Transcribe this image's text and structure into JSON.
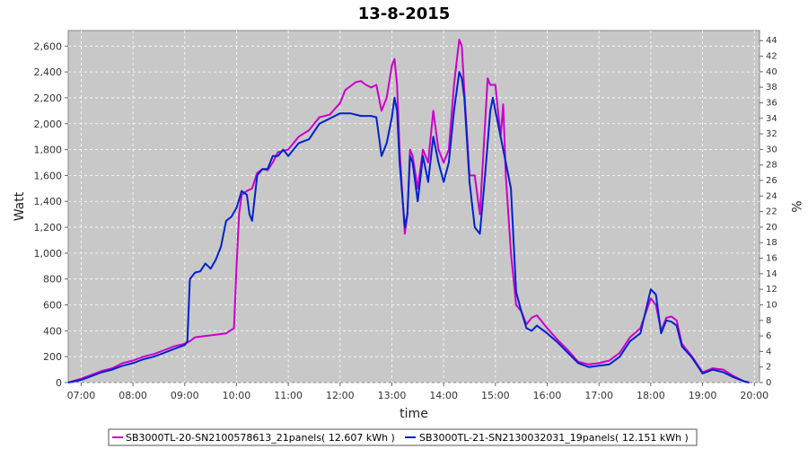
{
  "chart_data": {
    "type": "line",
    "title": "13-8-2015",
    "xlabel": "time",
    "ylabel": "Watt",
    "y2label": "%",
    "xlim": [
      6.75,
      20.1
    ],
    "ylim": [
      0,
      2720
    ],
    "y2lim": [
      0,
      45.3
    ],
    "x_ticks": [
      "07:00",
      "08:00",
      "09:00",
      "10:00",
      "11:00",
      "12:00",
      "13:00",
      "14:00",
      "15:00",
      "16:00",
      "17:00",
      "18:00",
      "19:00",
      "20:00"
    ],
    "y_ticks": [
      "0",
      "200",
      "400",
      "600",
      "800",
      "1,000",
      "1,200",
      "1,400",
      "1,600",
      "1,800",
      "2,000",
      "2,200",
      "2,400",
      "2,600"
    ],
    "y2_ticks": [
      "0",
      "2",
      "4",
      "6",
      "8",
      "10",
      "12",
      "14",
      "16",
      "18",
      "20",
      "22",
      "24",
      "26",
      "28",
      "30",
      "32",
      "34",
      "36",
      "38",
      "40",
      "42",
      "44"
    ],
    "grid": true,
    "legend_position": "bottom",
    "series": [
      {
        "name": "SB3000TL-20-SN2100578613_21panels( 12.607 kWh )",
        "color": "#cc00cc",
        "points": [
          [
            6.75,
            0
          ],
          [
            7.0,
            30
          ],
          [
            7.2,
            60
          ],
          [
            7.4,
            90
          ],
          [
            7.6,
            110
          ],
          [
            7.8,
            150
          ],
          [
            8.0,
            170
          ],
          [
            8.2,
            200
          ],
          [
            8.4,
            220
          ],
          [
            8.6,
            250
          ],
          [
            8.8,
            280
          ],
          [
            9.0,
            300
          ],
          [
            9.1,
            320
          ],
          [
            9.2,
            350
          ],
          [
            9.4,
            360
          ],
          [
            9.6,
            370
          ],
          [
            9.8,
            380
          ],
          [
            9.95,
            420
          ],
          [
            10.0,
            900
          ],
          [
            10.05,
            1300
          ],
          [
            10.1,
            1450
          ],
          [
            10.2,
            1480
          ],
          [
            10.3,
            1500
          ],
          [
            10.4,
            1620
          ],
          [
            10.5,
            1650
          ],
          [
            10.6,
            1640
          ],
          [
            10.7,
            1700
          ],
          [
            10.8,
            1780
          ],
          [
            11.0,
            1800
          ],
          [
            11.1,
            1850
          ],
          [
            11.2,
            1900
          ],
          [
            11.4,
            1950
          ],
          [
            11.6,
            2050
          ],
          [
            11.8,
            2070
          ],
          [
            12.0,
            2160
          ],
          [
            12.1,
            2260
          ],
          [
            12.2,
            2290
          ],
          [
            12.3,
            2320
          ],
          [
            12.4,
            2330
          ],
          [
            12.5,
            2300
          ],
          [
            12.6,
            2280
          ],
          [
            12.7,
            2300
          ],
          [
            12.8,
            2100
          ],
          [
            12.9,
            2200
          ],
          [
            13.0,
            2450
          ],
          [
            13.05,
            2500
          ],
          [
            13.1,
            2300
          ],
          [
            13.15,
            1800
          ],
          [
            13.25,
            1150
          ],
          [
            13.3,
            1300
          ],
          [
            13.35,
            1800
          ],
          [
            13.4,
            1750
          ],
          [
            13.5,
            1500
          ],
          [
            13.6,
            1800
          ],
          [
            13.7,
            1700
          ],
          [
            13.8,
            2100
          ],
          [
            13.85,
            1950
          ],
          [
            13.9,
            1800
          ],
          [
            14.0,
            1700
          ],
          [
            14.1,
            1800
          ],
          [
            14.2,
            2300
          ],
          [
            14.3,
            2650
          ],
          [
            14.35,
            2600
          ],
          [
            14.4,
            2250
          ],
          [
            14.5,
            1600
          ],
          [
            14.6,
            1600
          ],
          [
            14.7,
            1300
          ],
          [
            14.8,
            2000
          ],
          [
            14.85,
            2350
          ],
          [
            14.9,
            2300
          ],
          [
            15.0,
            2300
          ],
          [
            15.1,
            1900
          ],
          [
            15.15,
            2150
          ],
          [
            15.2,
            1600
          ],
          [
            15.3,
            1000
          ],
          [
            15.4,
            600
          ],
          [
            15.5,
            550
          ],
          [
            15.6,
            450
          ],
          [
            15.7,
            500
          ],
          [
            15.8,
            520
          ],
          [
            16.0,
            420
          ],
          [
            16.2,
            330
          ],
          [
            16.4,
            250
          ],
          [
            16.6,
            160
          ],
          [
            16.8,
            140
          ],
          [
            17.0,
            150
          ],
          [
            17.2,
            170
          ],
          [
            17.4,
            230
          ],
          [
            17.6,
            350
          ],
          [
            17.8,
            420
          ],
          [
            18.0,
            650
          ],
          [
            18.1,
            600
          ],
          [
            18.2,
            400
          ],
          [
            18.3,
            500
          ],
          [
            18.4,
            510
          ],
          [
            18.5,
            480
          ],
          [
            18.6,
            300
          ],
          [
            18.8,
            200
          ],
          [
            19.0,
            80
          ],
          [
            19.2,
            110
          ],
          [
            19.4,
            100
          ],
          [
            19.6,
            50
          ],
          [
            19.8,
            10
          ],
          [
            19.9,
            0
          ]
        ]
      },
      {
        "name": "SB3000TL-21-SN2130032031_19panels( 12.151 kWh )",
        "color": "#0022cc",
        "points": [
          [
            6.75,
            0
          ],
          [
            7.0,
            20
          ],
          [
            7.2,
            50
          ],
          [
            7.4,
            80
          ],
          [
            7.6,
            100
          ],
          [
            7.8,
            130
          ],
          [
            8.0,
            150
          ],
          [
            8.2,
            180
          ],
          [
            8.4,
            200
          ],
          [
            8.6,
            230
          ],
          [
            8.8,
            260
          ],
          [
            9.0,
            290
          ],
          [
            9.05,
            320
          ],
          [
            9.1,
            800
          ],
          [
            9.2,
            850
          ],
          [
            9.3,
            860
          ],
          [
            9.4,
            920
          ],
          [
            9.5,
            880
          ],
          [
            9.6,
            950
          ],
          [
            9.7,
            1050
          ],
          [
            9.8,
            1250
          ],
          [
            9.9,
            1280
          ],
          [
            10.0,
            1350
          ],
          [
            10.1,
            1480
          ],
          [
            10.2,
            1450
          ],
          [
            10.25,
            1300
          ],
          [
            10.3,
            1250
          ],
          [
            10.4,
            1600
          ],
          [
            10.5,
            1650
          ],
          [
            10.6,
            1650
          ],
          [
            10.7,
            1750
          ],
          [
            10.8,
            1750
          ],
          [
            10.9,
            1800
          ],
          [
            11.0,
            1750
          ],
          [
            11.2,
            1850
          ],
          [
            11.4,
            1880
          ],
          [
            11.6,
            2000
          ],
          [
            11.8,
            2040
          ],
          [
            12.0,
            2080
          ],
          [
            12.2,
            2080
          ],
          [
            12.4,
            2060
          ],
          [
            12.6,
            2060
          ],
          [
            12.7,
            2050
          ],
          [
            12.8,
            1750
          ],
          [
            12.9,
            1850
          ],
          [
            13.0,
            2050
          ],
          [
            13.05,
            2200
          ],
          [
            13.1,
            2100
          ],
          [
            13.15,
            1700
          ],
          [
            13.25,
            1200
          ],
          [
            13.3,
            1300
          ],
          [
            13.35,
            1750
          ],
          [
            13.4,
            1700
          ],
          [
            13.5,
            1400
          ],
          [
            13.6,
            1750
          ],
          [
            13.7,
            1550
          ],
          [
            13.8,
            1900
          ],
          [
            13.85,
            1800
          ],
          [
            13.9,
            1700
          ],
          [
            14.0,
            1550
          ],
          [
            14.1,
            1700
          ],
          [
            14.2,
            2100
          ],
          [
            14.3,
            2400
          ],
          [
            14.35,
            2350
          ],
          [
            14.4,
            2200
          ],
          [
            14.5,
            1550
          ],
          [
            14.6,
            1200
          ],
          [
            14.7,
            1150
          ],
          [
            14.8,
            1600
          ],
          [
            14.9,
            2100
          ],
          [
            14.95,
            2200
          ],
          [
            15.0,
            2100
          ],
          [
            15.1,
            1900
          ],
          [
            15.2,
            1700
          ],
          [
            15.3,
            1500
          ],
          [
            15.4,
            700
          ],
          [
            15.5,
            550
          ],
          [
            15.6,
            420
          ],
          [
            15.7,
            400
          ],
          [
            15.8,
            440
          ],
          [
            16.0,
            380
          ],
          [
            16.2,
            310
          ],
          [
            16.4,
            230
          ],
          [
            16.6,
            150
          ],
          [
            16.8,
            120
          ],
          [
            17.0,
            130
          ],
          [
            17.2,
            140
          ],
          [
            17.4,
            200
          ],
          [
            17.6,
            320
          ],
          [
            17.8,
            380
          ],
          [
            18.0,
            720
          ],
          [
            18.1,
            680
          ],
          [
            18.2,
            380
          ],
          [
            18.3,
            480
          ],
          [
            18.4,
            470
          ],
          [
            18.5,
            440
          ],
          [
            18.6,
            280
          ],
          [
            18.8,
            190
          ],
          [
            19.0,
            70
          ],
          [
            19.2,
            100
          ],
          [
            19.4,
            80
          ],
          [
            19.6,
            40
          ],
          [
            19.8,
            10
          ],
          [
            19.9,
            0
          ]
        ]
      }
    ]
  }
}
